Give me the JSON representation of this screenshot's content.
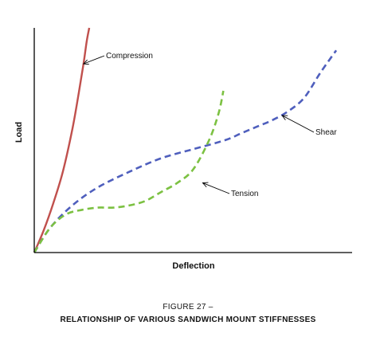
{
  "chart_data": {
    "type": "line",
    "title": "",
    "xlabel": "Deflection",
    "ylabel": "Load",
    "xlim": [
      0,
      100
    ],
    "ylim": [
      0,
      100
    ],
    "grid": false,
    "legend": "none",
    "series": [
      {
        "name": "Compression",
        "color": "#c0504d",
        "style": "solid",
        "x": [
          0,
          3,
          6,
          9,
          12,
          14,
          15.5,
          16.5,
          17.3
        ],
        "y": [
          0,
          10,
          22,
          36,
          55,
          71,
          84,
          94,
          100
        ],
        "annotation_point": [
          15.5,
          84
        ]
      },
      {
        "name": "Shear",
        "color": "#4f5fbd",
        "style": "dashed",
        "x": [
          0,
          5,
          12,
          20,
          30,
          40,
          50,
          60,
          65,
          70,
          75,
          80,
          85,
          90,
          95
        ],
        "y": [
          0,
          11,
          21,
          29,
          36,
          42,
          46,
          50,
          53,
          56,
          59,
          63,
          69,
          80,
          90
        ],
        "annotation_point": [
          78,
          61
        ]
      },
      {
        "name": "Tension",
        "color": "#7cc142",
        "style": "dashed",
        "x": [
          0,
          5,
          10,
          15,
          20,
          25,
          30,
          35,
          40,
          45,
          50,
          55,
          58,
          59.5
        ],
        "y": [
          0,
          11,
          17,
          19,
          20,
          20,
          21,
          23,
          27,
          31,
          37,
          50,
          62,
          72
        ],
        "annotation_point": [
          53,
          31
        ]
      }
    ]
  },
  "caption": {
    "number": "FIGURE 27 –",
    "title": "RELATIONSHIP OF VARIOUS SANDWICH MOUNT STIFFNESSES"
  }
}
